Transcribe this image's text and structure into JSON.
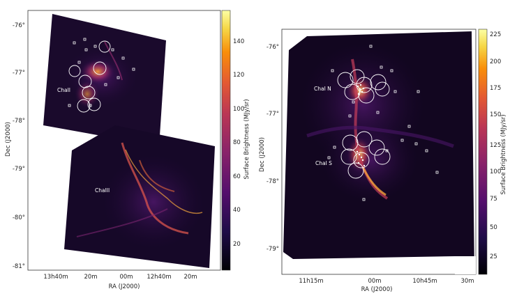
{
  "panels": [
    {
      "id": "left",
      "xlabel": "RA (J2000)",
      "ylabel": "Dec (J2000)",
      "colorbar_label": "Surface Brightness (MJy/sr)",
      "dec_ticks": [
        "-76°",
        "-77°",
        "-78°",
        "-79°",
        "-80°",
        "-81°"
      ],
      "ra_ticks": [
        "13h40m",
        "20m",
        "00m",
        "12h40m",
        "20m"
      ],
      "colorbar_ticks": [
        "140",
        "120",
        "100",
        "80",
        "60",
        "40",
        "20"
      ],
      "regions": [
        "ChaII",
        "ChaIII"
      ]
    },
    {
      "id": "right",
      "xlabel": "RA (J2000)",
      "ylabel": "Dec (J2000)",
      "colorbar_label": "Surface Brightness (MJy/sr)",
      "dec_ticks": [
        "-76°",
        "-77°",
        "-78°",
        "-79°"
      ],
      "ra_ticks": [
        "11h15m",
        "00m",
        "10h45m",
        "30m"
      ],
      "colorbar_ticks": [
        "225",
        "200",
        "175",
        "150",
        "125",
        "100",
        "75",
        "50",
        "25"
      ],
      "regions": [
        "ChaI N",
        "ChaI S"
      ]
    }
  ],
  "colormap": "inferno",
  "colors": {
    "background": "#0a0410",
    "low": "#2c0b4e",
    "mid": "#b8336a",
    "high": "#f9b234",
    "peak": "#fcffa4"
  }
}
